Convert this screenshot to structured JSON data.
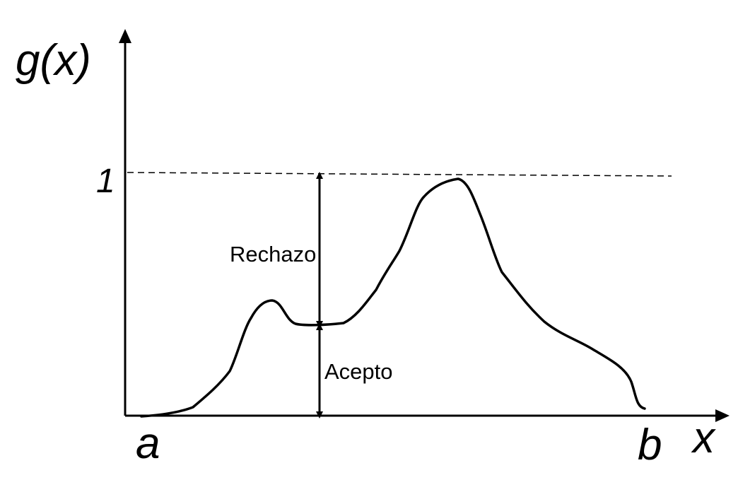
{
  "labels": {
    "y_axis": "g(x)",
    "x_axis": "x",
    "one": "1",
    "a": "a",
    "b": "b",
    "reject": "Rechazo",
    "accept": "Acepto"
  },
  "colors": {
    "ink": "#000000",
    "background": "#ffffff"
  }
}
